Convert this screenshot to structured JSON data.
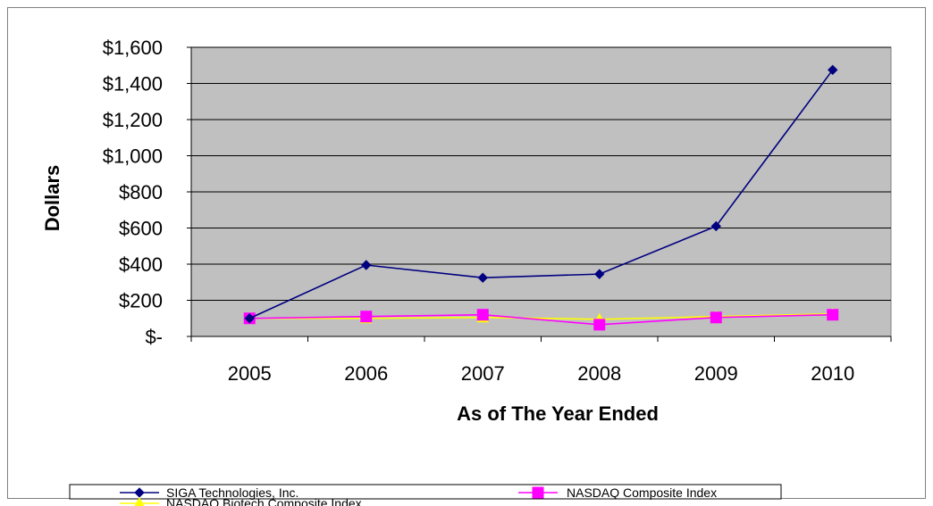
{
  "chart_data": {
    "type": "line",
    "title": "",
    "xlabel": "As of The Year Ended",
    "ylabel": "Dollars",
    "categories": [
      "2005",
      "2006",
      "2007",
      "2008",
      "2009",
      "2010"
    ],
    "ylim": [
      0,
      1600
    ],
    "yticks": [
      0,
      200,
      400,
      600,
      800,
      1000,
      1200,
      1400,
      1600
    ],
    "ytick_labels": [
      "$-",
      "$200",
      "$400",
      "$600",
      "$800",
      "$1,000",
      "$1,200",
      "$1,400",
      "$1,600"
    ],
    "grid": true,
    "plot_background": "#c0c0c0",
    "legend_position": "bottom",
    "series": [
      {
        "name": "SIGA Technologies, Inc.",
        "values": [
          100,
          395,
          325,
          345,
          610,
          1475
        ],
        "color": "#000080",
        "marker": "diamond"
      },
      {
        "name": "NASDAQ Composite Index",
        "values": [
          100,
          110,
          120,
          65,
          105,
          120
        ],
        "color": "#ff00ff",
        "marker": "square"
      },
      {
        "name": "NASDAQ Biotech Composite Index",
        "values": [
          100,
          100,
          105,
          95,
          110,
          125
        ],
        "color": "#ffff00",
        "marker": "triangle"
      }
    ]
  }
}
